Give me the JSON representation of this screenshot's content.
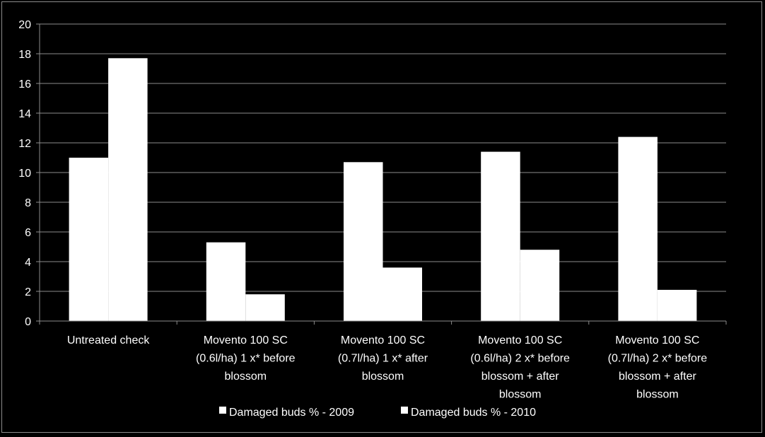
{
  "chart_data": {
    "type": "bar",
    "title": "",
    "xlabel": "",
    "ylabel": "",
    "ylim": [
      0,
      20
    ],
    "yticks": [
      0,
      2,
      4,
      6,
      8,
      10,
      12,
      14,
      16,
      18,
      20
    ],
    "grid": true,
    "legend_position": "bottom",
    "categories": [
      [
        "Untreated check"
      ],
      [
        "Movento 100 SC",
        "(0.6l/ha) 1 x* before",
        "blossom"
      ],
      [
        "Movento 100 SC",
        "(0.7l/ha) 1 x* after",
        "blossom"
      ],
      [
        "Movento 100 SC",
        "(0.6l/ha) 2 x* before",
        "blossom + after",
        "blossom"
      ],
      [
        "Movento 100 SC",
        "(0.7l/ha) 2 x* before",
        "blossom + after",
        "blossom"
      ]
    ],
    "series": [
      {
        "name": "Damaged buds % - 2009",
        "color": "#ffffff",
        "values": [
          11.0,
          5.3,
          10.7,
          11.4,
          12.4
        ]
      },
      {
        "name": "Damaged buds % - 2010",
        "color": "#ffffff",
        "values": [
          17.7,
          1.8,
          3.6,
          4.8,
          2.1
        ]
      }
    ],
    "colors": {
      "background": "#000000",
      "gridline": "#8c8c8c",
      "axis": "#8c8c8c",
      "text": "#ffffff"
    }
  }
}
